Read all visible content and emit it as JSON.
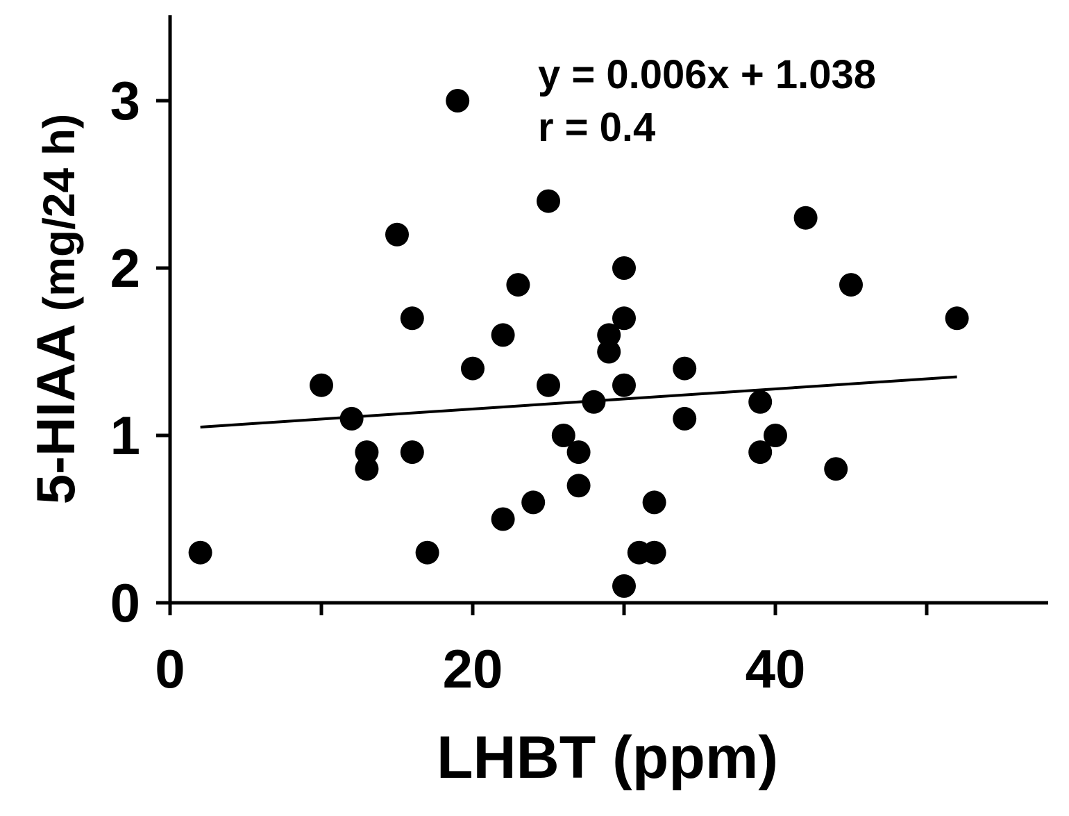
{
  "chart_data": {
    "type": "scatter",
    "xlabel": "LHBT (ppm)",
    "ylabel_main": "5-HIAA",
    "ylabel_unit": "(mg/24 h)",
    "xlim": [
      0,
      58
    ],
    "ylim": [
      0,
      3.5
    ],
    "x_ticks": [
      0,
      20,
      40
    ],
    "x_minor_ticks": [
      10,
      30,
      50
    ],
    "y_ticks": [
      0,
      1,
      2,
      3
    ],
    "annotation_equation": "y = 0.006x + 1.038",
    "annotation_r": "r = 0.4",
    "regression": {
      "x": [
        2,
        52
      ],
      "y": [
        1.05,
        1.35
      ]
    },
    "points": [
      {
        "x": 2,
        "y": 0.3
      },
      {
        "x": 10,
        "y": 1.3
      },
      {
        "x": 12,
        "y": 1.1
      },
      {
        "x": 13,
        "y": 0.9
      },
      {
        "x": 13,
        "y": 0.8
      },
      {
        "x": 15,
        "y": 2.2
      },
      {
        "x": 16,
        "y": 1.7
      },
      {
        "x": 16,
        "y": 0.9
      },
      {
        "x": 17,
        "y": 0.3
      },
      {
        "x": 19,
        "y": 3.0
      },
      {
        "x": 20,
        "y": 1.4
      },
      {
        "x": 22,
        "y": 1.6
      },
      {
        "x": 22,
        "y": 0.5
      },
      {
        "x": 23,
        "y": 1.9
      },
      {
        "x": 24,
        "y": 0.6
      },
      {
        "x": 25,
        "y": 2.4
      },
      {
        "x": 25,
        "y": 1.3
      },
      {
        "x": 26,
        "y": 1.0
      },
      {
        "x": 27,
        "y": 0.9
      },
      {
        "x": 27,
        "y": 0.7
      },
      {
        "x": 28,
        "y": 1.2
      },
      {
        "x": 29,
        "y": 1.6
      },
      {
        "x": 29,
        "y": 1.5
      },
      {
        "x": 30,
        "y": 2.0
      },
      {
        "x": 30,
        "y": 1.7
      },
      {
        "x": 30,
        "y": 1.3
      },
      {
        "x": 30,
        "y": 0.1
      },
      {
        "x": 31,
        "y": 0.3
      },
      {
        "x": 32,
        "y": 0.6
      },
      {
        "x": 32,
        "y": 0.3
      },
      {
        "x": 34,
        "y": 1.4
      },
      {
        "x": 34,
        "y": 1.1
      },
      {
        "x": 39,
        "y": 1.2
      },
      {
        "x": 39,
        "y": 0.9
      },
      {
        "x": 40,
        "y": 1.0
      },
      {
        "x": 42,
        "y": 2.3
      },
      {
        "x": 44,
        "y": 0.8
      },
      {
        "x": 45,
        "y": 1.9
      },
      {
        "x": 52,
        "y": 1.7
      }
    ]
  }
}
